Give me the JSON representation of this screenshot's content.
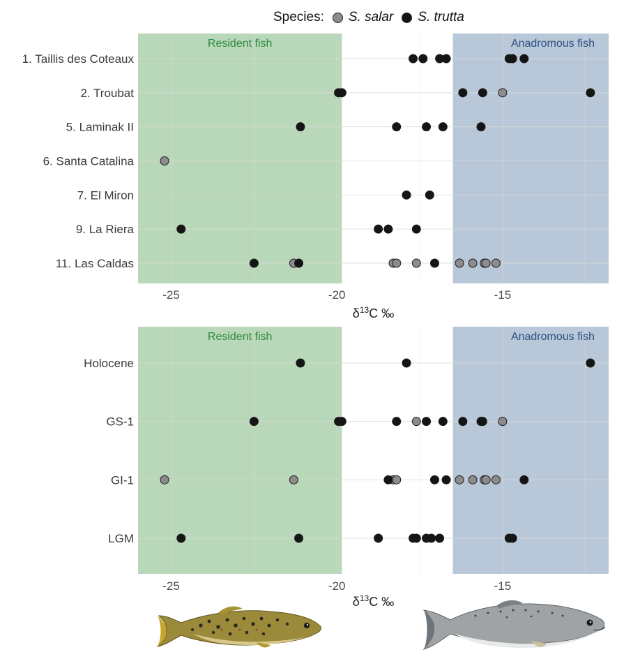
{
  "legend": {
    "title": "Species:",
    "entries": [
      {
        "label": "S. salar",
        "color": "#8c8c8c"
      },
      {
        "label": "S. trutta",
        "color": "#151515"
      }
    ]
  },
  "colors": {
    "resident_zone": "#b9d7b9",
    "anadromous_zone": "#b9c8d8",
    "resident_label": "#2d8a3e",
    "anadromous_label": "#2c4f82"
  },
  "chart_data": [
    {
      "type": "scatter",
      "xlabel": "δ13C ‰",
      "xlim": [
        -26.0,
        -11.8
      ],
      "x_ticks": [
        -25,
        -20,
        -15
      ],
      "x_tick_labels": [
        "-25",
        "-20",
        "-15"
      ],
      "zones": [
        {
          "label": "Resident fish",
          "from": -26.0,
          "to": -19.85
        },
        {
          "label": "Anadromous fish",
          "from": -16.5,
          "to": -11.8
        }
      ],
      "categories": [
        "1. Taillis des Coteaux",
        "2. Troubat",
        "5. Laminak II",
        "6. Santa Catalina",
        "7. El Miron",
        "9. La Riera",
        "11. Las Caldas"
      ],
      "series": [
        {
          "name": "S. salar",
          "points": [
            {
              "y": "2. Troubat",
              "x": -15.0
            },
            {
              "y": "6. Santa Catalina",
              "x": -25.2
            },
            {
              "y": "11. Las Caldas",
              "x": -21.3
            },
            {
              "y": "11. Las Caldas",
              "x": -18.3
            },
            {
              "y": "11. Las Caldas",
              "x": -18.2
            },
            {
              "y": "11. Las Caldas",
              "x": -17.6
            },
            {
              "y": "11. Las Caldas",
              "x": -16.3
            },
            {
              "y": "11. Las Caldas",
              "x": -15.9
            },
            {
              "y": "11. Las Caldas",
              "x": -15.55
            },
            {
              "y": "11. Las Caldas",
              "x": -15.5
            },
            {
              "y": "11. Las Caldas",
              "x": -15.2
            }
          ]
        },
        {
          "name": "S. trutta",
          "points": [
            {
              "y": "1. Taillis des Coteaux",
              "x": -17.7
            },
            {
              "y": "1. Taillis des Coteaux",
              "x": -17.4
            },
            {
              "y": "1. Taillis des Coteaux",
              "x": -16.9
            },
            {
              "y": "1. Taillis des Coteaux",
              "x": -16.7
            },
            {
              "y": "1. Taillis des Coteaux",
              "x": -14.8
            },
            {
              "y": "1. Taillis des Coteaux",
              "x": -14.7
            },
            {
              "y": "1. Taillis des Coteaux",
              "x": -14.35
            },
            {
              "y": "2. Troubat",
              "x": -19.95
            },
            {
              "y": "2. Troubat",
              "x": -19.85
            },
            {
              "y": "2. Troubat",
              "x": -16.2
            },
            {
              "y": "2. Troubat",
              "x": -15.6
            },
            {
              "y": "2. Troubat",
              "x": -12.35
            },
            {
              "y": "5. Laminak II",
              "x": -21.1
            },
            {
              "y": "5. Laminak II",
              "x": -18.2
            },
            {
              "y": "5. Laminak II",
              "x": -17.3
            },
            {
              "y": "5. Laminak II",
              "x": -16.8
            },
            {
              "y": "5. Laminak II",
              "x": -15.65
            },
            {
              "y": "7. El Miron",
              "x": -17.9
            },
            {
              "y": "7. El Miron",
              "x": -17.2
            },
            {
              "y": "9. La Riera",
              "x": -24.7
            },
            {
              "y": "9. La Riera",
              "x": -18.75
            },
            {
              "y": "9. La Riera",
              "x": -18.45
            },
            {
              "y": "9. La Riera",
              "x": -17.6
            },
            {
              "y": "11. Las Caldas",
              "x": -22.5
            },
            {
              "y": "11. Las Caldas",
              "x": -21.15
            },
            {
              "y": "11. Las Caldas",
              "x": -17.05
            }
          ]
        }
      ]
    },
    {
      "type": "scatter",
      "xlabel": "δ13C ‰",
      "xlim": [
        -26.0,
        -11.8
      ],
      "x_ticks": [
        -25,
        -20,
        -15
      ],
      "x_tick_labels": [
        "-25",
        "-20",
        "-15"
      ],
      "zones": [
        {
          "label": "Resident fish",
          "from": -26.0,
          "to": -19.85
        },
        {
          "label": "Anadromous fish",
          "from": -16.5,
          "to": -11.8
        }
      ],
      "categories": [
        "Holocene",
        "GS-1",
        "GI-1",
        "LGM"
      ],
      "series": [
        {
          "name": "S. salar",
          "points": [
            {
              "y": "GS-1",
              "x": -17.6
            },
            {
              "y": "GS-1",
              "x": -15.0
            },
            {
              "y": "GI-1",
              "x": -25.2
            },
            {
              "y": "GI-1",
              "x": -21.3
            },
            {
              "y": "GI-1",
              "x": -18.3
            },
            {
              "y": "GI-1",
              "x": -18.2
            },
            {
              "y": "GI-1",
              "x": -16.3
            },
            {
              "y": "GI-1",
              "x": -15.9
            },
            {
              "y": "GI-1",
              "x": -15.55
            },
            {
              "y": "GI-1",
              "x": -15.5
            },
            {
              "y": "GI-1",
              "x": -15.2
            }
          ]
        },
        {
          "name": "S. trutta",
          "points": [
            {
              "y": "Holocene",
              "x": -21.1
            },
            {
              "y": "Holocene",
              "x": -17.9
            },
            {
              "y": "Holocene",
              "x": -12.35
            },
            {
              "y": "GS-1",
              "x": -22.5
            },
            {
              "y": "GS-1",
              "x": -19.95
            },
            {
              "y": "GS-1",
              "x": -19.85
            },
            {
              "y": "GS-1",
              "x": -18.2
            },
            {
              "y": "GS-1",
              "x": -17.3
            },
            {
              "y": "GS-1",
              "x": -16.8
            },
            {
              "y": "GS-1",
              "x": -16.2
            },
            {
              "y": "GS-1",
              "x": -15.65
            },
            {
              "y": "GS-1",
              "x": -15.6
            },
            {
              "y": "GI-1",
              "x": -18.45
            },
            {
              "y": "GI-1",
              "x": -17.05
            },
            {
              "y": "GI-1",
              "x": -16.7
            },
            {
              "y": "GI-1",
              "x": -14.35
            },
            {
              "y": "LGM",
              "x": -24.7
            },
            {
              "y": "LGM",
              "x": -21.15
            },
            {
              "y": "LGM",
              "x": -18.75
            },
            {
              "y": "LGM",
              "x": -17.7
            },
            {
              "y": "LGM",
              "x": -17.6
            },
            {
              "y": "LGM",
              "x": -17.3
            },
            {
              "y": "LGM",
              "x": -17.15
            },
            {
              "y": "LGM",
              "x": -16.9
            },
            {
              "y": "LGM",
              "x": -14.8
            },
            {
              "y": "LGM",
              "x": -14.7
            }
          ]
        }
      ]
    }
  ]
}
